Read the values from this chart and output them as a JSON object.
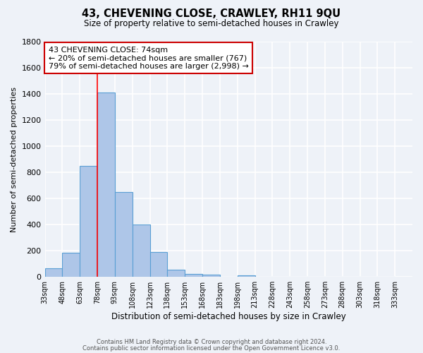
{
  "title": "43, CHEVENING CLOSE, CRAWLEY, RH11 9QU",
  "subtitle": "Size of property relative to semi-detached houses in Crawley",
  "xlabel": "Distribution of semi-detached houses by size in Crawley",
  "ylabel": "Number of semi-detached properties",
  "bin_labels": [
    "33sqm",
    "48sqm",
    "63sqm",
    "78sqm",
    "93sqm",
    "108sqm",
    "123sqm",
    "138sqm",
    "153sqm",
    "168sqm",
    "183sqm",
    "198sqm",
    "213sqm",
    "228sqm",
    "243sqm",
    "258sqm",
    "273sqm",
    "288sqm",
    "303sqm",
    "318sqm",
    "333sqm"
  ],
  "bin_edges": [
    33,
    48,
    63,
    78,
    93,
    108,
    123,
    138,
    153,
    168,
    183,
    198,
    213,
    228,
    243,
    258,
    273,
    288,
    303,
    318,
    333
  ],
  "bar_values": [
    65,
    185,
    850,
    1410,
    650,
    400,
    190,
    55,
    25,
    15,
    0,
    10,
    0,
    0,
    0,
    0,
    0,
    0,
    0,
    0
  ],
  "bar_color": "#aec6e8",
  "bar_edge_color": "#5a9fd4",
  "vline_x": 78,
  "ylim": [
    0,
    1800
  ],
  "yticks": [
    0,
    200,
    400,
    600,
    800,
    1000,
    1200,
    1400,
    1600,
    1800
  ],
  "annotation_title": "43 CHEVENING CLOSE: 74sqm",
  "annotation_line1": "← 20% of semi-detached houses are smaller (767)",
  "annotation_line2": "79% of semi-detached houses are larger (2,998) →",
  "annotation_box_color": "#ffffff",
  "annotation_box_edge": "#cc0000",
  "footer_line1": "Contains HM Land Registry data © Crown copyright and database right 2024.",
  "footer_line2": "Contains public sector information licensed under the Open Government Licence v3.0.",
  "background_color": "#eef2f8",
  "grid_color": "#ffffff"
}
